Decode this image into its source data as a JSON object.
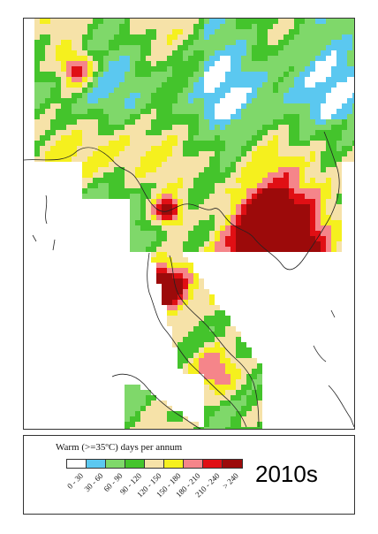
{
  "legend": {
    "title": "Warm (>=35ºC) days per annum",
    "classes": [
      {
        "label": "0 - 30",
        "color": "#ffffff"
      },
      {
        "label": "30 - 60",
        "color": "#5bc8f0"
      },
      {
        "label": "60 - 90",
        "color": "#7fd86a"
      },
      {
        "label": "90 - 120",
        "color": "#44c42c"
      },
      {
        "label": "120 - 150",
        "color": "#f6e2a8"
      },
      {
        "label": "150 - 180",
        "color": "#f5f01e"
      },
      {
        "label": "180 - 210",
        "color": "#f5858a"
      },
      {
        "label": "210 - 240",
        "color": "#e00f14"
      },
      {
        "label": "> 240",
        "color": "#9c0a0a"
      }
    ]
  },
  "period_label": "2010s",
  "colors": {
    "coastline": "#222222",
    "frame": "#333333",
    "sea": "#ffffff"
  }
}
